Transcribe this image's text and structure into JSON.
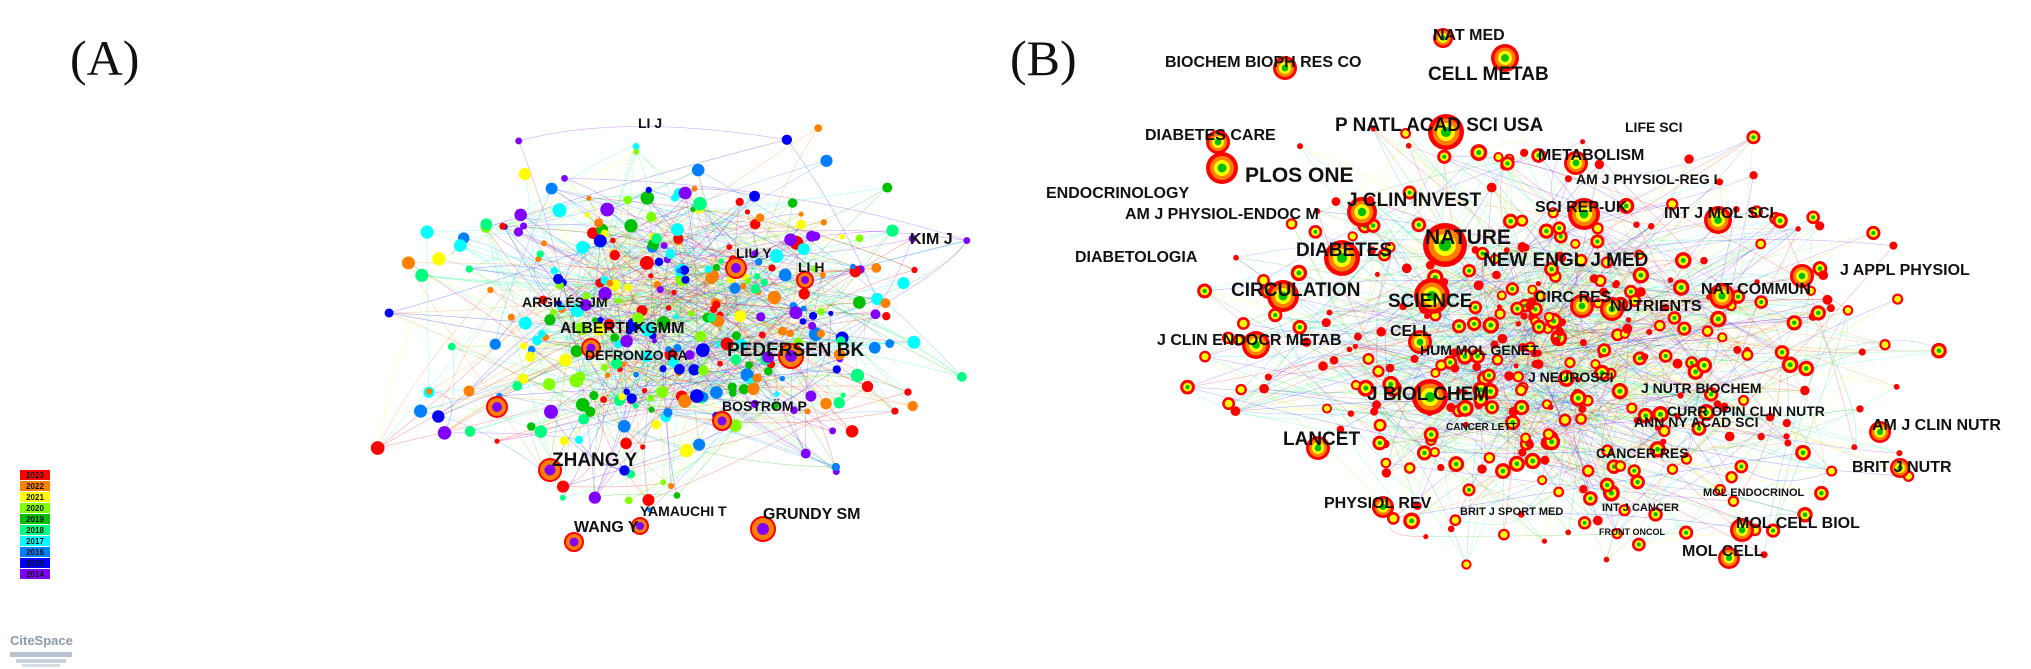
{
  "panelA": {
    "label": "(A)",
    "nodes": [
      "LI J",
      "KIM J",
      "LIU Y",
      "LI H",
      "ARGILÉS JM",
      "ALBERTI KGMM",
      "DEFRONZO RA",
      "PEDERSEN BK",
      "BOSTRÖM P",
      "ZHANG Y",
      "YAMAUCHI T",
      "WANG Y",
      "GRUNDY SM"
    ],
    "legend": {
      "years": [
        "2023",
        "2022",
        "2021",
        "2020",
        "2019",
        "2018",
        "2017",
        "2016",
        "2015",
        "2014"
      ],
      "colors": [
        "#ff0000",
        "#ff8000",
        "#ffff00",
        "#80ff00",
        "#00c000",
        "#00ff80",
        "#00ffff",
        "#0080ff",
        "#0000ff",
        "#8000ff"
      ]
    },
    "brand": "CiteSpace"
  },
  "panelB": {
    "label": "(B)",
    "nodes": [
      "NAT MED",
      "BIOCHEM BIOPH RES CO",
      "CELL METAB",
      "P NATL ACAD SCI USA",
      "LIFE SCI",
      "DIABETES CARE",
      "METABOLISM",
      "PLOS ONE",
      "AM J PHYSIOL-REG I",
      "ENDOCRINOLOGY",
      "J CLIN INVEST",
      "AM J PHYSIOL-ENDOC M",
      "SCI REP-UK",
      "INT J MOL SCI",
      "DIABETES",
      "NATURE",
      "DIABETOLOGIA",
      "NEW ENGL J MED",
      "J APPL PHYSIOL",
      "CIRCULATION",
      "SCIENCE",
      "NAT COMMUN",
      "CIRC RES",
      "NUTRIENTS",
      "J CLIN ENDOCR METAB",
      "CELL",
      "HUM MOL GENET",
      "J NEUROSCI",
      "J NUTR BIOCHEM",
      "J BIOL CHEM",
      "CURR OPIN CLIN NUTR",
      "AM J CLIN NUTR",
      "CANCER LETT",
      "ANN NY ACAD SCI",
      "LANCET",
      "CANCER RES",
      "BRIT J NUTR",
      "MOL ENDOCRINOL",
      "PHYSIOL REV",
      "INT J CANCER",
      "BRIT J SPORT MED",
      "MOL CELL BIOL",
      "FRONT ONCOL",
      "MOL CELL"
    ]
  },
  "palette": [
    "#ff0000",
    "#ff8000",
    "#ffff00",
    "#80ff00",
    "#00c000",
    "#00ff80",
    "#00ffff",
    "#0080ff",
    "#0000ff",
    "#8000ff"
  ]
}
